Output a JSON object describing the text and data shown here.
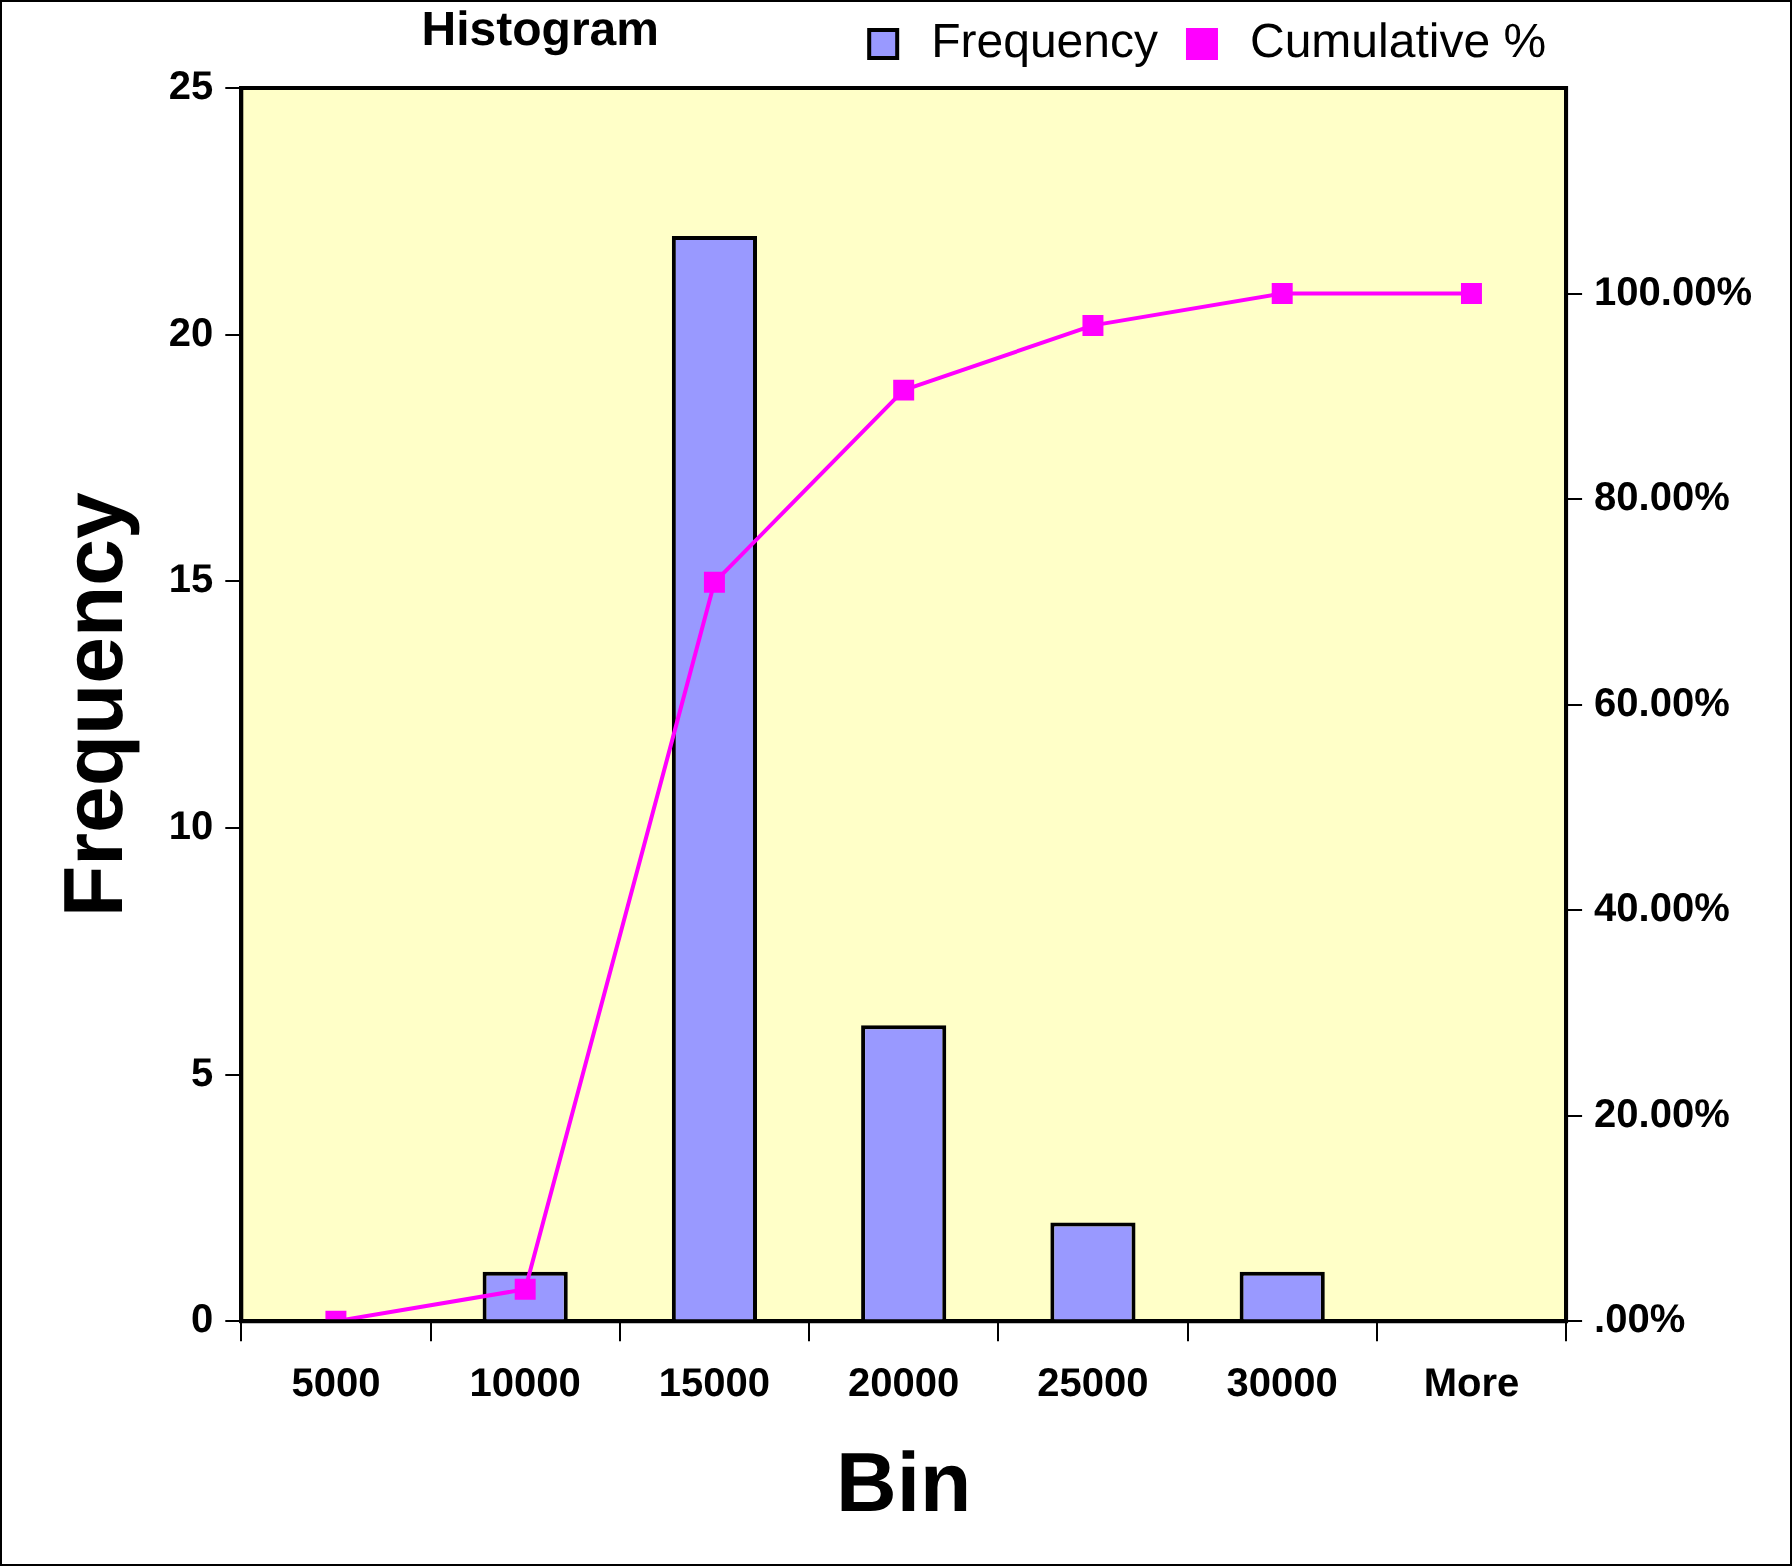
{
  "chart_data": {
    "type": "bar",
    "title": "Histogram",
    "xlabel": "Bin",
    "ylabel": "Frequency",
    "categories": [
      "5000",
      "10000",
      "15000",
      "20000",
      "25000",
      "30000",
      "More"
    ],
    "series": [
      {
        "name": "Frequency",
        "color": "#9999ff",
        "values": [
          0,
          1,
          22,
          6,
          2,
          1,
          0
        ]
      },
      {
        "name": "Cumulative %",
        "type": "line",
        "axis": "y2",
        "color": "#ff00ff",
        "marker": "square",
        "values": [
          0,
          3.1,
          71.9,
          90.6,
          96.9,
          100,
          100
        ]
      }
    ],
    "ylim": [
      0,
      25
    ],
    "yticks": [
      0,
      5,
      10,
      15,
      20,
      25
    ],
    "y2lim": [
      0,
      120
    ],
    "y2ticks": [
      {
        "value": 0,
        "label": ".00%"
      },
      {
        "value": 20,
        "label": "20.00%"
      },
      {
        "value": 40,
        "label": "40.00%"
      },
      {
        "value": 60,
        "label": "60.00%"
      },
      {
        "value": 80,
        "label": "80.00%"
      },
      {
        "value": 100,
        "label": "100.00%"
      }
    ],
    "grid": false,
    "legend": "top right"
  }
}
